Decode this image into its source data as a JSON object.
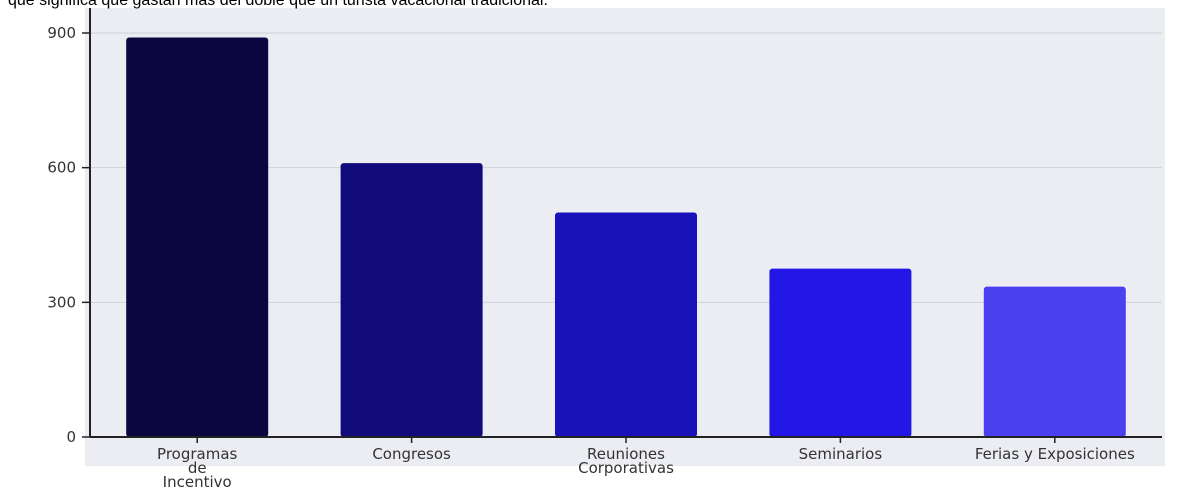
{
  "chart_data": {
    "type": "bar",
    "caption": "que significa que gastan más del doble que un turista vacacional tradicional.",
    "categories": [
      [
        "Programas",
        "de",
        "Incentivo"
      ],
      [
        "Congresos"
      ],
      [
        "Reuniones",
        "Corporativas"
      ],
      [
        "Seminarios"
      ],
      [
        "Ferias y Exposiciones"
      ]
    ],
    "values": [
      890,
      610,
      500,
      375,
      335
    ],
    "colors": [
      "#0b0640",
      "#110a7a",
      "#1912bb",
      "#2217e6",
      "#4b40f0"
    ],
    "ylim": [
      0,
      900
    ],
    "yticks": [
      0,
      300,
      600,
      900
    ],
    "grid": true
  }
}
